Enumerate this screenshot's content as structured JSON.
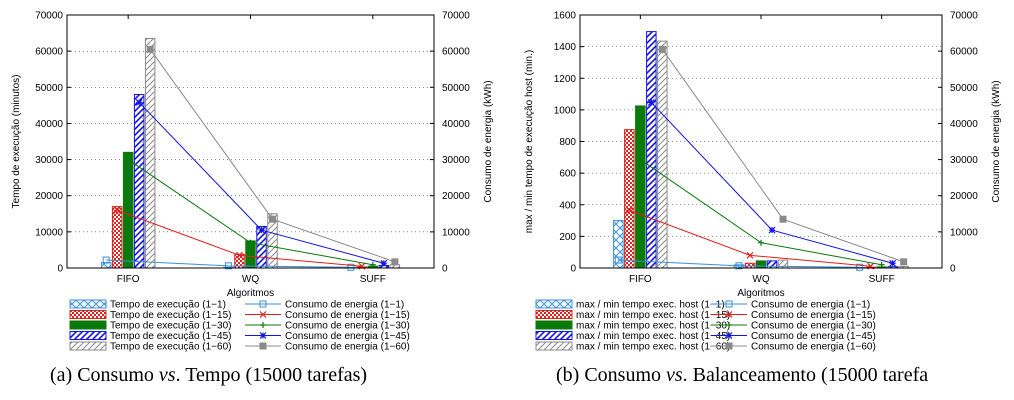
{
  "captions": [
    {
      "prefix": "(a)  Consumo ",
      "vs": "vs",
      "suffix": ". Tempo (15000 tarefas)"
    },
    {
      "prefix": "(b)  Consumo ",
      "vs": "vs",
      "suffix": ". Balanceamento (15000 tarefa"
    }
  ],
  "colors": {
    "s1": "#3b8fd9",
    "s15": "#e0201b",
    "s30": "#0b7a0b",
    "s45": "#1414e0",
    "s60": "#8a8a8a"
  },
  "chart_data": [
    {
      "type": "bar",
      "categories": [
        "FIFO",
        "WQ",
        "SUFF"
      ],
      "xlabel": "Algoritmos",
      "ylabel": "Tempo de execução (minutos)",
      "y2label": "Consumo de energia (kWh)",
      "ylim": [
        0,
        70000
      ],
      "y2lim": [
        0,
        70000
      ],
      "yticks": [
        "0",
        "10000",
        "20000",
        "30000",
        "40000",
        "50000",
        "60000",
        "70000"
      ],
      "y2ticks": [
        "0",
        "10000",
        "20000",
        "30000",
        "40000",
        "50000",
        "60000",
        "70000"
      ],
      "legend_position": "bottom",
      "series": [
        {
          "name": "Tempo de execução (1−1)",
          "values": [
            1500,
            200,
            150
          ]
        },
        {
          "name": "Tempo de execução (1−15)",
          "values": [
            17000,
            3800,
            300
          ]
        },
        {
          "name": "Tempo de execução (1−30)",
          "values": [
            32000,
            7500,
            500
          ]
        },
        {
          "name": "Tempo de execução (1−45)",
          "values": [
            48000,
            11500,
            700
          ]
        },
        {
          "name": "Tempo de execução (1−60)",
          "values": [
            63500,
            15000,
            900
          ]
        }
      ],
      "line_series": [
        {
          "name": "Consumo de energia (1−1)",
          "values": [
            2200,
            600,
            200
          ]
        },
        {
          "name": "Consumo de energia (1−15)",
          "values": [
            16000,
            3500,
            500
          ]
        },
        {
          "name": "Consumo de energia (1−30)",
          "values": [
            30000,
            7000,
            900
          ]
        },
        {
          "name": "Consumo de energia (1−45)",
          "values": [
            45800,
            10500,
            1300
          ]
        },
        {
          "name": "Consumo de energia (1−60)",
          "values": [
            60500,
            13500,
            1700
          ]
        }
      ]
    },
    {
      "type": "bar",
      "categories": [
        "FIFO",
        "WQ",
        "SUFF"
      ],
      "xlabel": "Algoritmos",
      "ylabel": "max / min tempo de execução host (min.)",
      "y2label": "Consumo de energia (kWh)",
      "ylim": [
        0,
        1600
      ],
      "y2lim": [
        0,
        70000
      ],
      "yticks": [
        "0",
        "200",
        "400",
        "600",
        "800",
        "1000",
        "1200",
        "1400",
        "1600"
      ],
      "y2ticks": [
        "0",
        "10000",
        "20000",
        "30000",
        "40000",
        "50000",
        "60000",
        "70000"
      ],
      "legend_position": "bottom",
      "series": [
        {
          "name": "max / min tempo exec. host (1−1)",
          "values": [
            300,
            20,
            3
          ]
        },
        {
          "name": "max / min tempo exec. host (1−15)",
          "values": [
            875,
            30,
            5
          ]
        },
        {
          "name": "max / min tempo exec. host (1−30)",
          "values": [
            1025,
            45,
            7
          ]
        },
        {
          "name": "max / min tempo exec. host (1−45)",
          "values": [
            1495,
            45,
            8
          ]
        },
        {
          "name": "max / min tempo exec. host (1−60)",
          "values": [
            1435,
            50,
            10
          ]
        }
      ],
      "line_series": [
        {
          "name": "Consumo de energia (1−1)",
          "values": [
            2200,
            600,
            200
          ]
        },
        {
          "name": "Consumo de energia (1−15)",
          "values": [
            16000,
            3500,
            500
          ]
        },
        {
          "name": "Consumo de energia (1−30)",
          "values": [
            30000,
            7000,
            900
          ]
        },
        {
          "name": "Consumo de energia (1−45)",
          "values": [
            45800,
            10500,
            1300
          ]
        },
        {
          "name": "Consumo de energia (1−60)",
          "values": [
            60500,
            13500,
            1700
          ]
        }
      ]
    }
  ]
}
